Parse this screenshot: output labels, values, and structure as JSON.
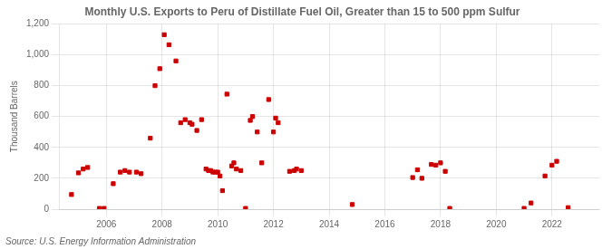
{
  "chart_data": {
    "type": "scatter",
    "title": "Monthly U.S. Exports to Peru of Distillate Fuel Oil, Greater than 15 to 500 ppm Sulfur",
    "ylabel": "Thousand Barrels",
    "annotations": [
      "Source: U.S. Energy Information Administration"
    ],
    "color": "#cc0000",
    "marker": "square",
    "grid": true,
    "legend": false,
    "xlim": [
      2004.3,
      2023.7
    ],
    "xticks": [
      2006,
      2008,
      2010,
      2012,
      2014,
      2016,
      2018,
      2020,
      2022
    ],
    "ylim": [
      0,
      1200
    ],
    "yticks": [
      0,
      200,
      400,
      600,
      800,
      {
        "value": 1000,
        "label": "1,000"
      },
      {
        "value": 1200,
        "label": "1,200"
      }
    ],
    "x": [
      2004.75,
      2005.0,
      2005.17,
      2005.33,
      2005.75,
      2005.92,
      2006.25,
      2006.5,
      2006.67,
      2006.83,
      2007.08,
      2007.25,
      2007.58,
      2007.75,
      2007.92,
      2008.08,
      2008.25,
      2008.5,
      2008.67,
      2008.83,
      2009.0,
      2009.08,
      2009.25,
      2009.42,
      2009.58,
      2009.67,
      2009.75,
      2009.83,
      2009.92,
      2010.0,
      2010.08,
      2010.17,
      2010.33,
      2010.5,
      2010.58,
      2010.67,
      2010.83,
      2011.0,
      2011.17,
      2011.25,
      2011.42,
      2011.58,
      2011.83,
      2012.0,
      2012.08,
      2012.17,
      2012.58,
      2012.75,
      2012.83,
      2013.0,
      2014.83,
      2017.0,
      2017.17,
      2017.33,
      2017.67,
      2017.83,
      2018.0,
      2018.17,
      2018.33,
      2021.0,
      2021.25,
      2021.75,
      2022.0,
      2022.17,
      2022.58
    ],
    "values": [
      95,
      235,
      260,
      270,
      5,
      5,
      165,
      240,
      250,
      240,
      240,
      230,
      460,
      800,
      910,
      1130,
      1065,
      960,
      560,
      580,
      560,
      550,
      510,
      580,
      260,
      250,
      250,
      240,
      240,
      240,
      215,
      120,
      745,
      280,
      300,
      260,
      250,
      5,
      575,
      600,
      500,
      300,
      710,
      500,
      590,
      560,
      245,
      250,
      260,
      250,
      30,
      205,
      255,
      200,
      290,
      285,
      300,
      245,
      5,
      5,
      40,
      215,
      285,
      310,
      10
    ]
  }
}
